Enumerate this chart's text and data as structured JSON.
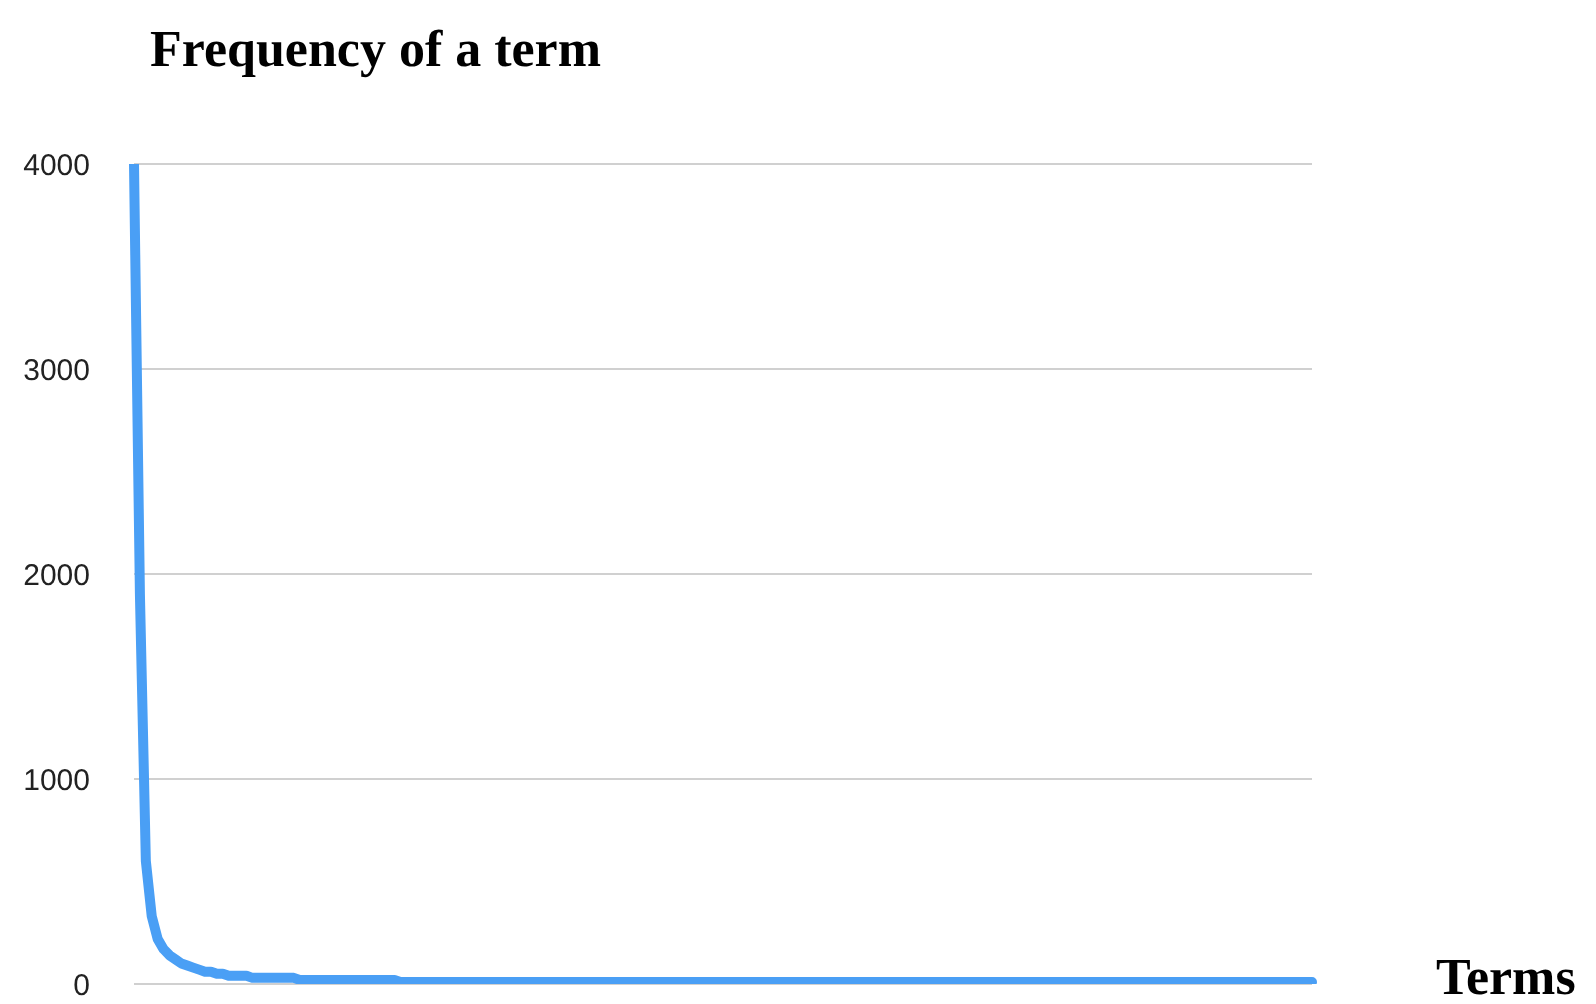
{
  "chart_data": {
    "type": "line",
    "title": "Frequency of a term",
    "xlabel": "Terms",
    "categories": [
      null,
      null,
      null,
      null,
      null,
      null,
      null,
      null,
      null,
      null,
      null,
      null,
      null,
      null,
      null,
      null,
      null,
      null,
      null,
      null,
      null,
      null,
      null,
      null,
      null,
      null,
      null,
      null,
      null,
      null,
      null,
      null,
      null,
      null,
      null,
      null,
      null,
      null,
      null,
      null,
      null,
      null,
      null,
      null,
      null,
      null,
      null,
      null,
      null,
      null,
      null,
      null,
      null,
      null,
      null,
      null,
      null,
      null,
      null,
      null,
      null,
      null,
      null,
      null,
      null,
      null,
      null,
      null,
      null,
      null,
      null,
      null,
      null,
      null,
      null,
      null,
      null,
      null,
      null,
      null,
      null,
      null,
      null,
      null,
      null,
      null,
      null,
      null,
      null,
      null,
      null,
      null,
      null,
      null,
      null,
      null,
      null,
      null,
      null,
      null,
      null,
      null,
      null,
      null,
      null,
      null,
      null,
      null,
      null,
      null,
      null,
      null,
      null,
      null,
      null,
      null,
      null,
      null,
      null,
      null,
      null,
      null,
      null,
      null,
      null,
      null,
      null,
      null,
      null,
      null,
      null,
      null,
      null,
      null,
      null,
      null,
      null,
      null,
      null,
      null,
      null,
      null,
      null,
      null,
      null,
      null,
      null,
      null,
      null,
      null,
      null,
      null,
      null,
      null,
      null,
      null,
      null,
      null,
      null,
      null,
      null,
      null,
      null,
      null,
      null,
      null,
      null,
      null,
      null,
      null,
      null,
      null,
      null,
      null,
      null,
      null,
      null,
      null,
      null,
      null,
      null,
      null,
      null,
      null,
      null,
      null,
      null,
      null,
      null,
      null,
      null,
      null,
      null,
      null,
      null,
      null,
      null,
      null,
      null,
      null
    ],
    "series": [
      {
        "color": "#4a9ff5",
        "values": [
          4000,
          1900,
          600,
          330,
          220,
          170,
          140,
          120,
          100,
          90,
          80,
          70,
          60,
          60,
          50,
          50,
          40,
          40,
          40,
          40,
          30,
          30,
          30,
          30,
          30,
          30,
          30,
          30,
          20,
          20,
          20,
          20,
          20,
          20,
          20,
          20,
          20,
          20,
          20,
          20,
          20,
          20,
          20,
          20,
          20,
          10,
          10,
          10,
          10,
          10,
          10,
          10,
          10,
          10,
          10,
          10,
          10,
          10,
          10,
          10,
          10,
          10,
          10,
          10,
          10,
          10,
          10,
          10,
          10,
          10,
          10,
          10,
          10,
          10,
          10,
          10,
          10,
          10,
          10,
          10,
          10,
          10,
          10,
          10,
          10,
          10,
          10,
          10,
          10,
          10,
          10,
          10,
          10,
          10,
          10,
          10,
          10,
          10,
          10,
          10,
          10,
          10,
          10,
          10,
          10,
          10,
          10,
          10,
          10,
          10,
          10,
          10,
          10,
          10,
          10,
          10,
          10,
          10,
          10,
          10,
          10,
          10,
          10,
          10,
          10,
          10,
          10,
          10,
          10,
          10,
          10,
          10,
          10,
          10,
          10,
          10,
          10,
          10,
          10,
          10,
          10,
          10,
          10,
          10,
          10,
          10,
          10,
          10,
          10,
          10,
          10,
          10,
          10,
          10,
          10,
          10,
          10,
          10,
          10,
          10,
          10,
          10,
          10,
          10,
          10,
          10,
          10,
          10,
          10,
          10,
          10,
          10,
          10,
          10,
          10,
          10,
          10,
          10,
          10,
          10,
          10,
          10,
          10,
          10,
          10,
          10,
          10,
          10,
          10,
          10,
          10,
          10,
          10,
          10,
          10,
          10,
          10,
          10,
          10,
          10
        ]
      }
    ],
    "ylim": [
      0,
      4000
    ],
    "yticks": [
      0,
      1000,
      2000,
      3000,
      4000
    ],
    "grid": "y",
    "legend": false,
    "marker": "none",
    "line_style": "solid"
  }
}
